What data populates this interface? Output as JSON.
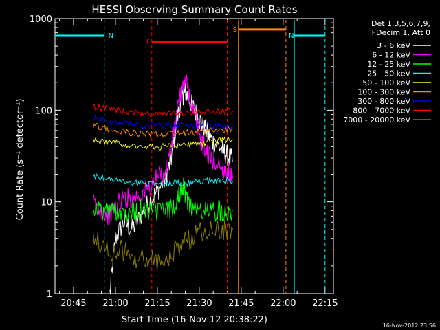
{
  "chart_data": {
    "type": "line",
    "title": "HESSI Observing Summary Count Rates",
    "xlabel": "Start Time (16-Nov-12 20:38:22)",
    "ylabel": "Count Rate (s⁻¹ detector⁻¹)",
    "yscale": "log",
    "ylim": [
      1,
      1000
    ],
    "xlim": [
      "20:38:22",
      "22:18:00"
    ],
    "y_ticks": [
      "1",
      "10",
      "100",
      "1000"
    ],
    "x_ticks": [
      "20:45",
      "21:00",
      "21:15",
      "21:30",
      "21:45",
      "22:00",
      "22:15"
    ],
    "legend_header": [
      "Det 1,3,5,6,7,9,",
      "FDecim 1, Att 0"
    ],
    "footer_timestamp": "16-Nov-2012 23:56",
    "grid": false,
    "legend_position": "right",
    "series": [
      {
        "name": "3 - 6 keV",
        "color": "#ffffff",
        "x": [
          "20:58",
          "21:00",
          "21:03",
          "21:06",
          "21:09",
          "21:12",
          "21:15",
          "21:18",
          "21:20",
          "21:22",
          "21:24",
          "21:25",
          "21:27",
          "21:29",
          "21:31",
          "21:33",
          "21:35",
          "21:38",
          "21:40",
          "21:42"
        ],
        "values": [
          1,
          4,
          6,
          5,
          7,
          10,
          13,
          18,
          30,
          80,
          145,
          160,
          120,
          90,
          70,
          55,
          45,
          38,
          32,
          28
        ]
      },
      {
        "name": "6 - 12 keV",
        "color": "#ff00ff",
        "x": [
          "20:52",
          "20:55",
          "20:58",
          "21:00",
          "21:03",
          "21:06",
          "21:09",
          "21:12",
          "21:15",
          "21:18",
          "21:20",
          "21:22",
          "21:24",
          "21:25",
          "21:27",
          "21:29",
          "21:31",
          "21:33",
          "21:35",
          "21:38",
          "21:40",
          "21:42"
        ],
        "values": [
          10,
          8,
          7,
          9,
          11,
          11,
          12,
          14,
          18,
          22,
          40,
          90,
          180,
          220,
          130,
          70,
          45,
          33,
          28,
          24,
          21,
          18
        ]
      },
      {
        "name": "12 - 25 keV",
        "color": "#00ff00",
        "x": [
          "20:52",
          "20:55",
          "20:58",
          "21:01",
          "21:04",
          "21:07",
          "21:10",
          "21:13",
          "21:16",
          "21:19",
          "21:22",
          "21:24",
          "21:25",
          "21:27",
          "21:30",
          "21:33",
          "21:36",
          "21:39",
          "21:42"
        ],
        "values": [
          9,
          8,
          8,
          8,
          8,
          8,
          8,
          8,
          8,
          8,
          10,
          15,
          12,
          9,
          8,
          8,
          8,
          8,
          8
        ]
      },
      {
        "name": "25 - 50 keV",
        "color": "#00ffff",
        "x": [
          "20:52",
          "20:57",
          "21:02",
          "21:07",
          "21:12",
          "21:17",
          "21:22",
          "21:27",
          "21:32",
          "21:37",
          "21:42"
        ],
        "values": [
          19,
          18,
          17,
          16,
          16,
          16,
          16,
          16,
          17,
          17,
          17
        ]
      },
      {
        "name": "50 - 100 keV",
        "color": "#ffff00",
        "x": [
          "20:52",
          "20:57",
          "21:02",
          "21:07",
          "21:12",
          "21:17",
          "21:22",
          "21:27",
          "21:32",
          "21:37",
          "21:42"
        ],
        "values": [
          47,
          45,
          43,
          41,
          40,
          40,
          40,
          42,
          44,
          47,
          48
        ]
      },
      {
        "name": "100 - 300 keV",
        "color": "#ff8c00",
        "x": [
          "20:52",
          "20:57",
          "21:02",
          "21:07",
          "21:12",
          "21:17",
          "21:22",
          "21:27",
          "21:32",
          "21:37",
          "21:42"
        ],
        "values": [
          68,
          63,
          59,
          56,
          55,
          55,
          56,
          57,
          59,
          61,
          62
        ]
      },
      {
        "name": "300 - 800 keV",
        "color": "#0000ff",
        "x": [
          "20:52",
          "20:57",
          "21:02",
          "21:07",
          "21:12",
          "21:17",
          "21:22",
          "21:27",
          "21:32",
          "21:37",
          "21:42"
        ],
        "values": [
          82,
          76,
          72,
          70,
          68,
          68,
          68,
          68,
          67,
          66,
          65
        ]
      },
      {
        "name": "800 - 7000 keV",
        "color": "#ff0000",
        "x": [
          "20:52",
          "20:57",
          "21:02",
          "21:07",
          "21:12",
          "21:17",
          "21:22",
          "21:27",
          "21:32",
          "21:37",
          "21:42"
        ],
        "values": [
          110,
          103,
          97,
          93,
          91,
          90,
          91,
          93,
          95,
          97,
          98
        ]
      },
      {
        "name": "7000 - 20000 keV",
        "color": "#8b8000",
        "x": [
          "20:52",
          "20:57",
          "21:02",
          "21:07",
          "21:12",
          "21:17",
          "21:22",
          "21:27",
          "21:32",
          "21:37",
          "21:42"
        ],
        "values": [
          4,
          3,
          3,
          2.5,
          2.3,
          2.3,
          3,
          4,
          5,
          5,
          5
        ]
      }
    ],
    "annotations": [
      {
        "label": "N",
        "color": "#00ffff",
        "type": "bar",
        "x_start": "20:38:22",
        "x_end": "20:56",
        "y": 650
      },
      {
        "label": "N",
        "color": "#00ffff",
        "type": "bar",
        "x_start": "22:04",
        "x_end": "22:15",
        "y": 650
      },
      {
        "label": "F",
        "color": "#ff0000",
        "type": "bar",
        "x_start": "21:13",
        "x_end": "21:40",
        "y": 560
      },
      {
        "label": "S",
        "color": "#ff8c00",
        "type": "bar",
        "x_start": "21:44",
        "x_end": "22:01",
        "y": 760
      }
    ]
  }
}
